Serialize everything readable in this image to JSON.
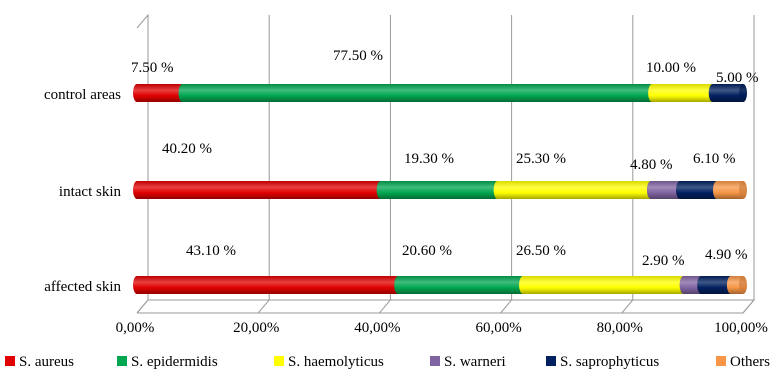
{
  "chart_data": {
    "type": "bar",
    "orientation": "horizontal",
    "stacked": true,
    "percent_stacked": true,
    "categories": [
      "control areas",
      "intact skin",
      "affected skin"
    ],
    "series": [
      {
        "name": "S. aureus",
        "color": "#e00000",
        "values": [
          7.5,
          40.2,
          43.1
        ],
        "labels": [
          "7.50 %",
          "40.20 %",
          "43.10 %"
        ]
      },
      {
        "name": "S. epidermidis",
        "color": "#00a650",
        "values": [
          77.5,
          19.3,
          20.6
        ],
        "labels": [
          "77.50 %",
          "19.30 %",
          "20.60 %"
        ]
      },
      {
        "name": "S. haemolyticus",
        "color": "#ffff00",
        "values": [
          10.0,
          25.3,
          26.5
        ],
        "labels": [
          "10.00 %",
          "25.30 %",
          "26.50 %"
        ]
      },
      {
        "name": "S. warneri",
        "color": "#8064a2",
        "values": [
          0,
          4.8,
          2.9
        ],
        "labels": [
          "",
          "4.80 %",
          "2.90 %"
        ]
      },
      {
        "name": "S. saprophyticus",
        "color": "#002060",
        "values": [
          5.0,
          6.1,
          4.9
        ],
        "labels": [
          "5.00 %",
          "6.10 %",
          "4.90 %"
        ]
      },
      {
        "name": "Others",
        "color": "#f79646",
        "values": [
          0,
          4.3,
          2.0
        ],
        "labels": [
          "",
          "",
          ""
        ]
      }
    ],
    "xaxis": {
      "min": 0,
      "max": 100,
      "ticks": [
        "0,00%",
        "20,00%",
        "40,00%",
        "60,00%",
        "80,00%",
        "100,00%"
      ]
    },
    "grid": true,
    "legend": "bottom"
  }
}
